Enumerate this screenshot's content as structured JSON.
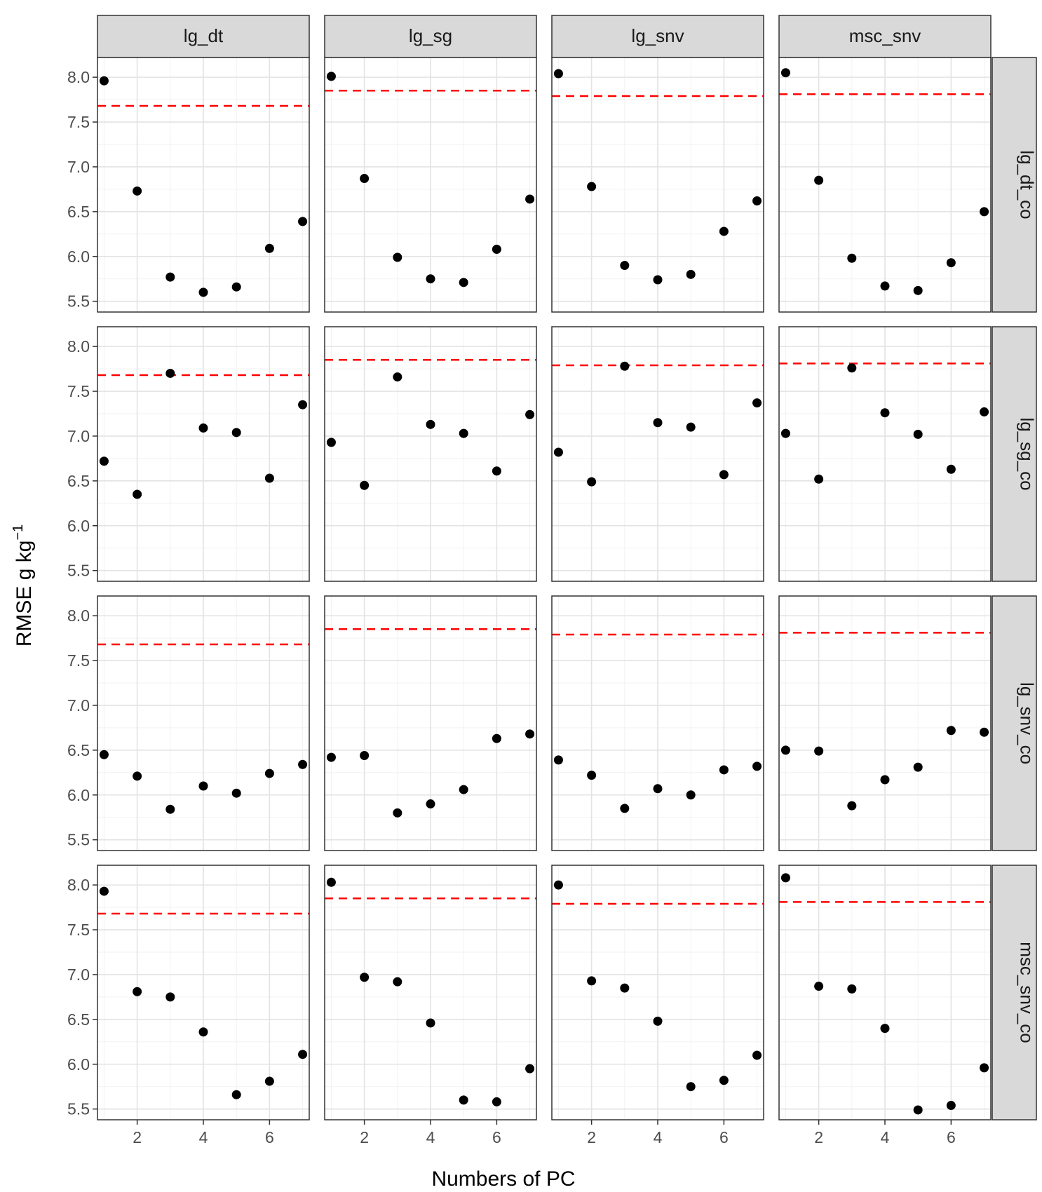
{
  "chart_data": {
    "type": "scatter",
    "layout": "facet-grid",
    "xlabel": "Numbers of PC",
    "ylabel": "RMSE g kg",
    "ylabel_superscript": "−1",
    "column_facets": [
      "lg_dt",
      "lg_sg",
      "lg_snv",
      "msc_snv"
    ],
    "row_facets": [
      "lg_dt_co",
      "lg_sg_co",
      "lg_snv_co",
      "msc_snv_co"
    ],
    "x": [
      1,
      2,
      3,
      4,
      5,
      6,
      7
    ],
    "xlim": [
      0.8,
      7.2
    ],
    "ylim": [
      5.38,
      8.22
    ],
    "x_ticks": [
      2,
      4,
      6
    ],
    "y_ticks": [
      5.5,
      6.0,
      6.5,
      7.0,
      7.5,
      8.0
    ],
    "y_tick_labels": [
      "5.5",
      "6.0",
      "6.5",
      "7.0",
      "7.5",
      "8.0"
    ],
    "grid": true,
    "point_color": "#000000",
    "reference_line_color": "#ff0000",
    "reference_line_style": "dashed",
    "reference_lines": [
      7.68,
      7.85,
      7.79,
      7.81
    ],
    "values": [
      [
        [
          7.96,
          6.73,
          5.77,
          5.6,
          5.66,
          6.09,
          6.39
        ],
        [
          8.01,
          6.87,
          5.99,
          5.75,
          5.71,
          6.08,
          6.64
        ],
        [
          8.04,
          6.78,
          5.9,
          5.74,
          5.8,
          6.28,
          6.62
        ],
        [
          8.05,
          6.85,
          5.98,
          5.67,
          5.62,
          5.93,
          6.5
        ]
      ],
      [
        [
          6.72,
          6.35,
          7.7,
          7.09,
          7.04,
          6.53,
          7.35
        ],
        [
          6.93,
          6.45,
          7.66,
          7.13,
          7.03,
          6.61,
          7.24
        ],
        [
          6.82,
          6.49,
          7.78,
          7.15,
          7.1,
          6.57,
          7.37
        ],
        [
          7.03,
          6.52,
          7.76,
          7.26,
          7.02,
          6.63,
          7.27
        ]
      ],
      [
        [
          6.45,
          6.21,
          5.84,
          6.1,
          6.02,
          6.24,
          6.34
        ],
        [
          6.42,
          6.44,
          5.8,
          5.9,
          6.06,
          6.63,
          6.68
        ],
        [
          6.39,
          6.22,
          5.85,
          6.07,
          6.0,
          6.28,
          6.32
        ],
        [
          6.5,
          6.49,
          5.88,
          6.17,
          6.31,
          6.72,
          6.7
        ]
      ],
      [
        [
          7.93,
          6.81,
          6.75,
          6.36,
          5.66,
          5.81,
          6.11
        ],
        [
          8.03,
          6.97,
          6.92,
          6.46,
          5.6,
          5.58,
          5.95
        ],
        [
          8.0,
          6.93,
          6.85,
          6.48,
          5.75,
          5.82,
          6.1
        ],
        [
          8.08,
          6.87,
          6.84,
          6.4,
          5.49,
          5.54,
          5.96
        ]
      ]
    ]
  }
}
